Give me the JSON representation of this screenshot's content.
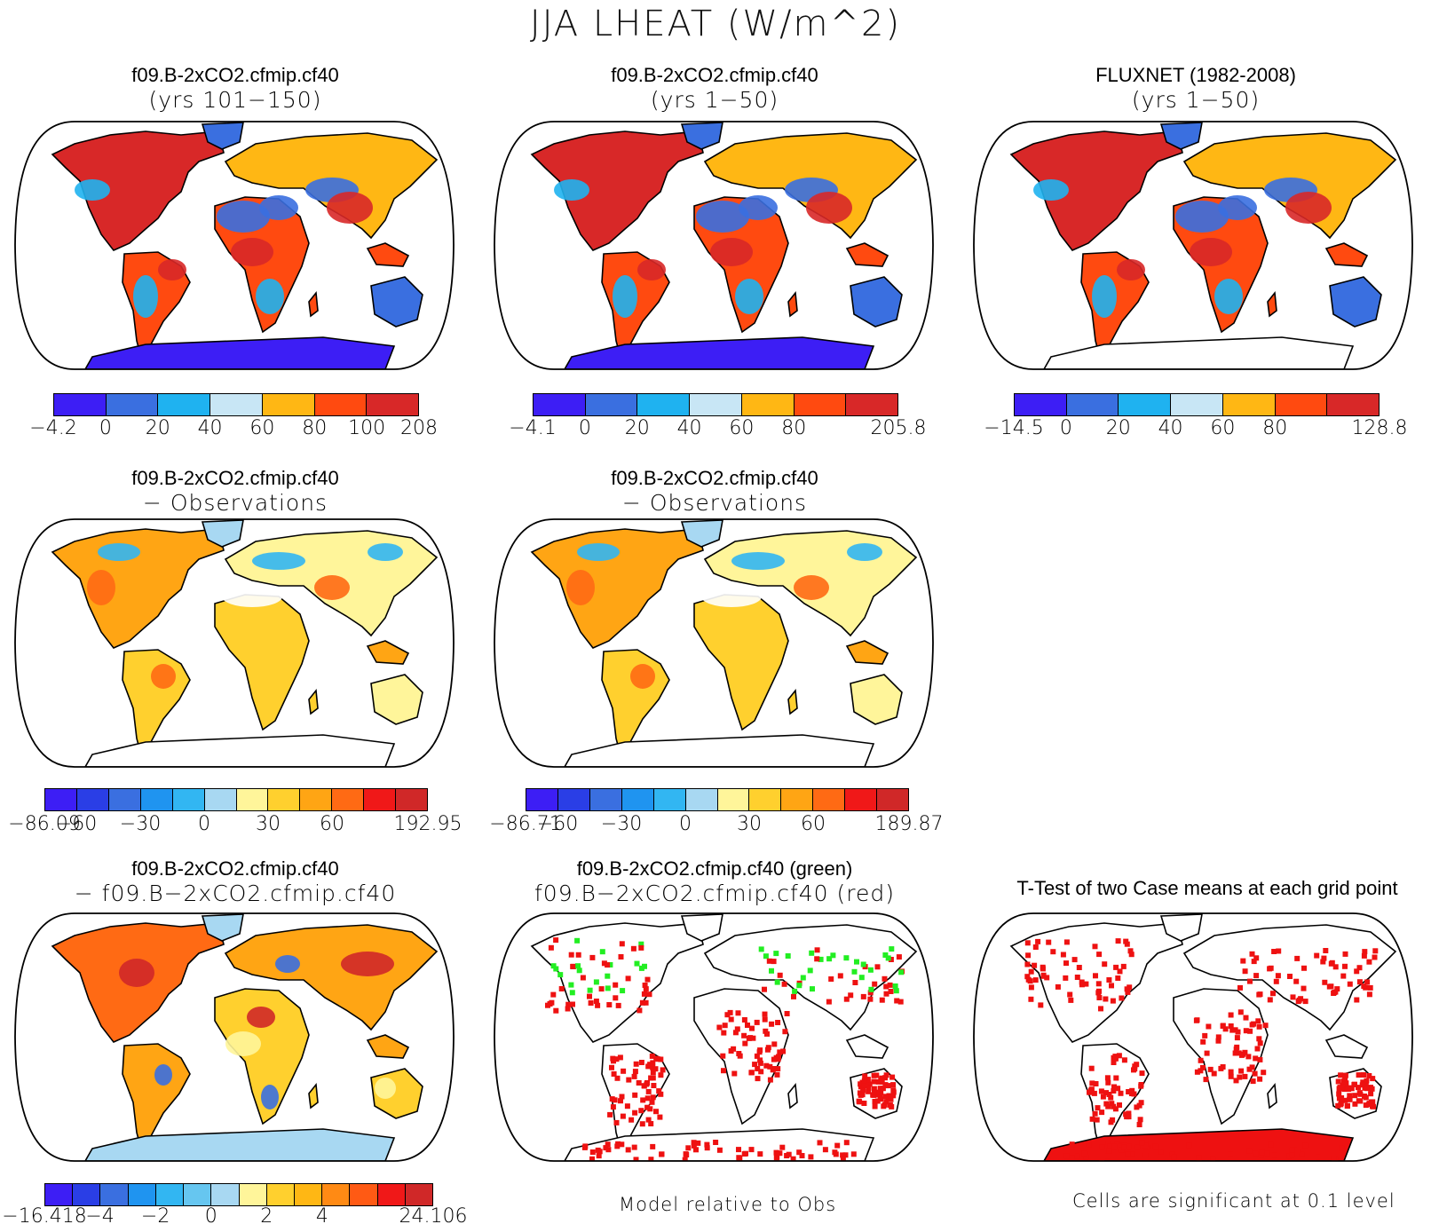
{
  "title": "JJA LHEAT (W/m^2)",
  "colors": {
    "frame": "#000000",
    "land_white": "#ffffff",
    "palette_7": [
      "#3d1ef5",
      "#3a6fe0",
      "#1fb2f0",
      "#c8e6f5",
      "#ffb714",
      "#ff4a10",
      "#d82828"
    ],
    "palette_12": [
      "#3d1ef5",
      "#2a3ee6",
      "#3a6fe0",
      "#1f94f0",
      "#32b6f2",
      "#a8d8f2",
      "#fff59a",
      "#ffd02e",
      "#ffa514",
      "#ff6a14",
      "#f01818",
      "#d02828"
    ],
    "palette_14": [
      "#3d1ef5",
      "#2a3ee6",
      "#3a6fe0",
      "#1f94f0",
      "#32b6f2",
      "#66c6f0",
      "#a8d8f2",
      "#fff59a",
      "#ffd02e",
      "#ffb714",
      "#ff8a14",
      "#ff5a14",
      "#f01818",
      "#d02828"
    ],
    "sig_green": "#22ee22",
    "sig_red": "#ee1111"
  },
  "panels": [
    {
      "id": "p1",
      "title_line1": "f09.B-2xCO2.cfmip.cf40",
      "title_line2": "(yrs 101−150)",
      "type": "field",
      "antarctica": "#3d1ef5",
      "colorbar": {
        "palette": "palette_7",
        "labels": [
          "−4.2",
          "0",
          "20",
          "40",
          "60",
          "80",
          "100",
          "208"
        ]
      }
    },
    {
      "id": "p2",
      "title_line1": "f09.B-2xCO2.cfmip.cf40",
      "title_line2": "(yrs 1−50)",
      "type": "field",
      "antarctica": "#3d1ef5",
      "colorbar": {
        "palette": "palette_7",
        "labels": [
          "−4.1",
          "0",
          "20",
          "40",
          "60",
          "80",
          "",
          "205.8"
        ]
      }
    },
    {
      "id": "p3",
      "title_line1": "FLUXNET (1982-2008)",
      "title_line2": "(yrs 1−50)",
      "type": "field",
      "antarctica": "#ffffff",
      "colorbar": {
        "palette": "palette_7",
        "labels": [
          "−14.5",
          "0",
          "20",
          "40",
          "60",
          "80",
          "",
          "128.8"
        ]
      }
    },
    {
      "id": "p4",
      "title_line1": "f09.B-2xCO2.cfmip.cf40",
      "title_line2": "− Observations",
      "type": "diff",
      "antarctica": "#ffffff",
      "colorbar": {
        "palette": "palette_12",
        "labels": [
          "−86.09",
          "−60",
          "",
          "−30",
          "",
          "0",
          "",
          "30",
          "",
          "60",
          "",
          "",
          "192.95"
        ]
      }
    },
    {
      "id": "p5",
      "title_line1": "f09.B-2xCO2.cfmip.cf40",
      "title_line2": "− Observations",
      "type": "diff",
      "antarctica": "#ffffff",
      "colorbar": {
        "palette": "palette_12",
        "labels": [
          "−86.71",
          "−60",
          "",
          "−30",
          "",
          "0",
          "",
          "30",
          "",
          "60",
          "",
          "",
          "189.87"
        ]
      }
    },
    {
      "id": "p6",
      "title_line1": "f09.B-2xCO2.cfmip.cf40",
      "title_line2": "− f09.B−2xCO2.cfmip.cf40",
      "type": "diff2",
      "antarctica": "#a8d8f2",
      "colorbar": {
        "palette": "palette_14",
        "labels": [
          "−16.418",
          "",
          "−4",
          "",
          "−2",
          "",
          "0",
          "",
          "2",
          "",
          "4",
          "",
          "",
          "",
          "24.106"
        ]
      }
    },
    {
      "id": "p7",
      "title_line1": "f09.B-2xCO2.cfmip.cf40 (green)",
      "title_line2": "f09.B−2xCO2.cfmip.cf40 (red)",
      "type": "relative",
      "antarctica": "#ffffff",
      "note": "Model relative to Obs"
    },
    {
      "id": "p8",
      "title_line1": "T-Test of two Case means at each grid point",
      "title_line2": "",
      "type": "ttest",
      "antarctica": "#ee1111",
      "note": "Cells are significant at 0.1 level"
    }
  ]
}
